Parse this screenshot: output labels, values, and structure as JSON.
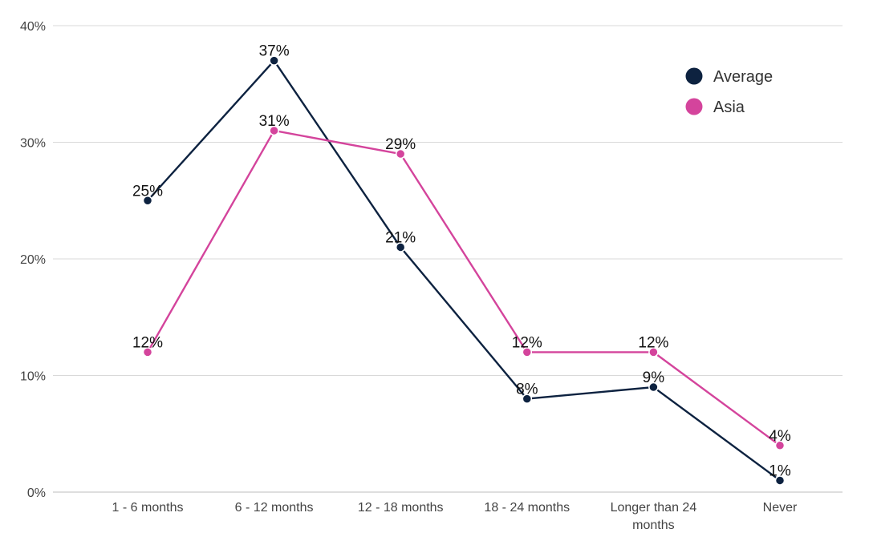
{
  "chart_data": {
    "type": "line",
    "title": "",
    "xlabel": "",
    "ylabel": "",
    "categories": [
      [
        "1 - 6 months"
      ],
      [
        "6 - 12 months"
      ],
      [
        "12 - 18 months"
      ],
      [
        "18 - 24 months"
      ],
      [
        "Longer than 24",
        "months"
      ],
      [
        "Never"
      ]
    ],
    "ylim": [
      0,
      40
    ],
    "yticks": [
      0,
      10,
      20,
      30,
      40
    ],
    "ytick_labels": [
      "0%",
      "10%",
      "20%",
      "30%",
      "40%"
    ],
    "grid": true,
    "legend": "top-right",
    "series": [
      {
        "name": "Average",
        "color": "#0d2240",
        "values": [
          25,
          37,
          21,
          8,
          9,
          1
        ],
        "labels": [
          "25%",
          "37%",
          "21%",
          "8%",
          "9%",
          "1%"
        ]
      },
      {
        "name": "Asia",
        "color": "#d4449c",
        "values": [
          12,
          31,
          29,
          12,
          12,
          4
        ],
        "labels": [
          "12%",
          "31%",
          "29%",
          "12%",
          "12%",
          "4%"
        ]
      }
    ]
  }
}
